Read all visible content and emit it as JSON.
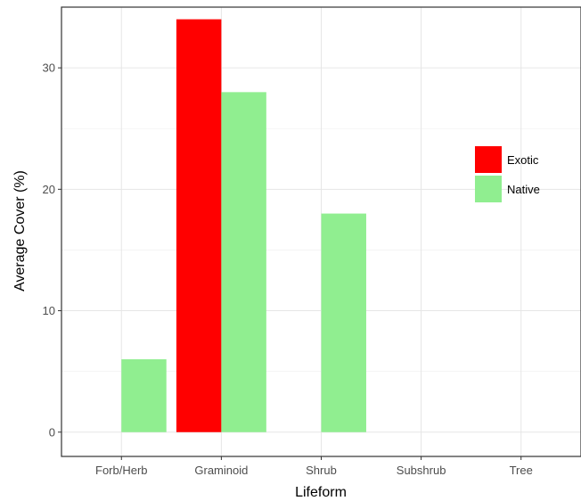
{
  "chart_data": {
    "type": "bar",
    "categories": [
      "Forb/Herb",
      "Graminoid",
      "Shrub",
      "Subshrub",
      "Tree"
    ],
    "series": [
      {
        "name": "Exotic",
        "color": "#ff0000",
        "values": [
          null,
          34,
          null,
          null,
          null
        ]
      },
      {
        "name": "Native",
        "color": "#90ee90",
        "values": [
          6,
          28,
          18,
          null,
          null
        ]
      }
    ],
    "xlabel": "Lifeform",
    "ylabel": "Average Cover (%)",
    "ylim": [
      -2,
      35
    ],
    "yticks": [
      0,
      10,
      20,
      30
    ],
    "grid": true,
    "legend_position": "right-inside"
  }
}
